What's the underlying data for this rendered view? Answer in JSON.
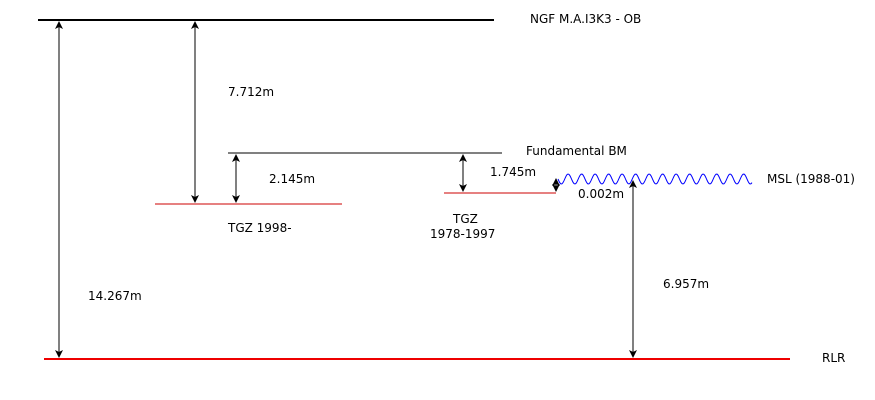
{
  "datums": {
    "ngf": "NGF M.A.I3K3 - OB",
    "fundamental_bm": "Fundamental BM",
    "msl": "MSL (1988-01)",
    "rlr": "RLR",
    "tgz_1998": "TGZ 1998-",
    "tgz_1978_line1": "TGZ",
    "tgz_1978_line2": "1978-1997"
  },
  "measurements": {
    "ngf_to_rlr": "14.267m",
    "ngf_to_tgz1998": "7.712m",
    "bm_to_tgz1998": "2.145m",
    "bm_to_tgz1978": "1.745m",
    "tgz1978_to_msl": "0.002m",
    "msl_to_rlr": "6.957m"
  },
  "colors": {
    "black": "#000000",
    "red": "#cc0000",
    "rlr_red": "#ee0000",
    "msl_blue": "#0000ff"
  }
}
